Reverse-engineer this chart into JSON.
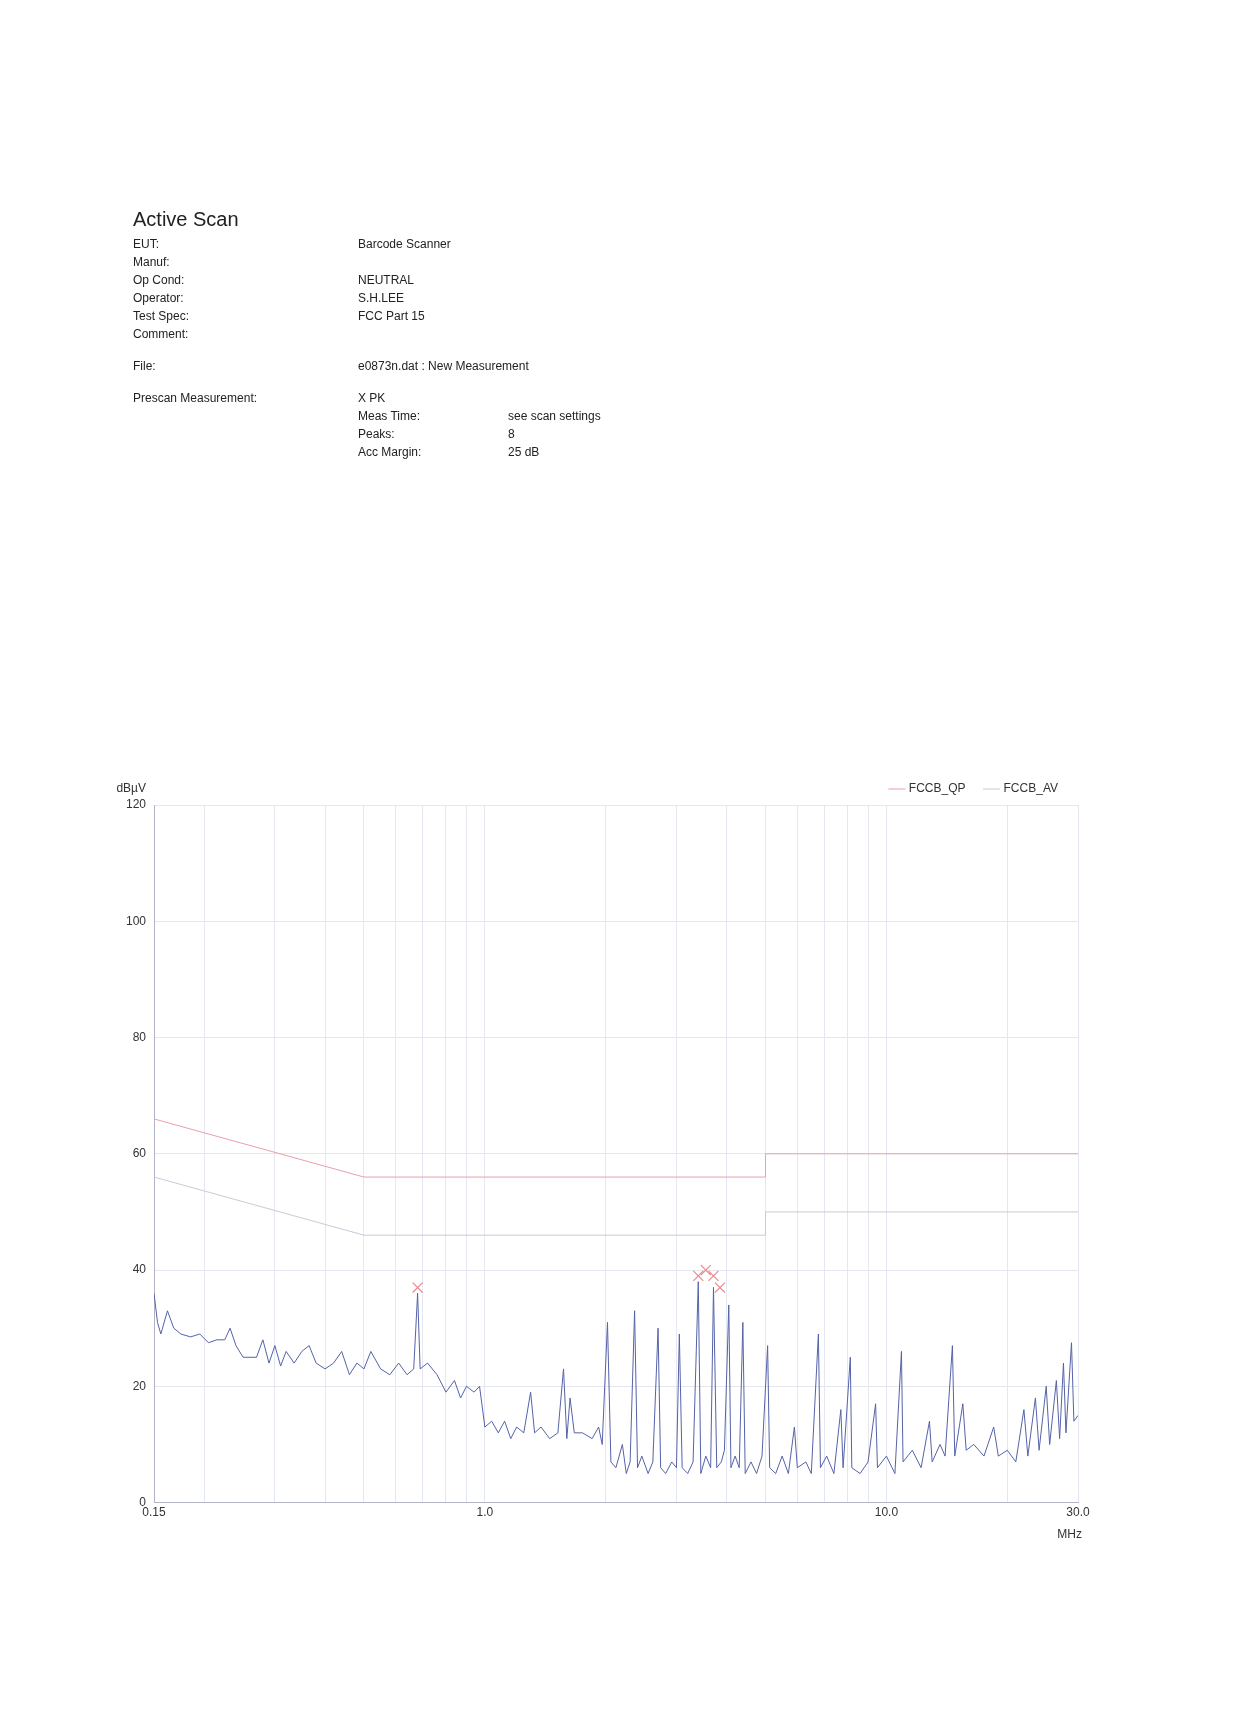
{
  "chart_data": {
    "type": "line",
    "title": "Active Scan",
    "ylabel": "dBµV",
    "xlabel": "MHz",
    "log": "x",
    "grid": true,
    "legend": "top",
    "annotations": [
      "EUT:\tBarcode Scanner",
      "Manuf:",
      "Op Cond:\tNEUTRAL",
      "Operator:\tS.H.LEE",
      "Test Spec:\tFCC Part 15",
      "Comment:",
      "File:\te0873n.dat : New Measurement",
      "Prescan Measurement:\tX PK",
      "\tMeas Time:\tsee scan settings",
      "\tPeaks:\t8",
      "\tAcc Margin:\t25 dB"
    ],
    "xlim": [
      0.15,
      30
    ],
    "ylim": [
      0,
      120
    ],
    "xticks": [
      0.15,
      {
        "value": 0.2,
        "label": null
      },
      {
        "value": 0.3,
        "label": null
      },
      {
        "value": 0.4,
        "label": null
      },
      {
        "value": 0.5,
        "label": null
      },
      {
        "value": 0.6,
        "label": null
      },
      {
        "value": 0.7,
        "label": null
      },
      {
        "value": 0.8,
        "label": null
      },
      {
        "value": 0.9,
        "label": null
      },
      {
        "value": 1,
        "label": "1.0"
      },
      {
        "value": 2,
        "label": null
      },
      {
        "value": 3,
        "label": null
      },
      {
        "value": 4,
        "label": null
      },
      {
        "value": 5,
        "label": null
      },
      {
        "value": 6,
        "label": null
      },
      {
        "value": 7,
        "label": null
      },
      {
        "value": 8,
        "label": null
      },
      {
        "value": 9,
        "label": null
      },
      {
        "value": 10,
        "label": "10.0"
      },
      {
        "value": 20,
        "label": null
      },
      {
        "value": 30,
        "label": "30.0"
      }
    ],
    "yticks": [
      0,
      20,
      40,
      60,
      80,
      100,
      120
    ],
    "series": [
      {
        "name": "FCCB_QP",
        "color": "#e8a0aa",
        "x": [
          0.15,
          0.5,
          5,
          5,
          30
        ],
        "values": [
          66,
          56,
          56,
          60,
          60
        ]
      },
      {
        "name": "FCCB_AV",
        "color": "#c8cad8",
        "x": [
          0.15,
          0.5,
          5,
          5,
          30
        ],
        "values": [
          56,
          46,
          46,
          50,
          50
        ]
      },
      {
        "color": "#5563a8",
        "x": [
          0.15,
          0.153,
          0.156,
          0.162,
          0.168,
          0.175,
          0.185,
          0.195,
          0.205,
          0.215,
          0.225,
          0.232,
          0.24,
          0.25,
          0.26,
          0.27,
          0.28,
          0.29,
          0.3,
          0.31,
          0.32,
          0.335,
          0.35,
          0.365,
          0.38,
          0.4,
          0.42,
          0.44,
          0.46,
          0.48,
          0.5,
          0.52,
          0.55,
          0.58,
          0.61,
          0.64,
          0.665,
          0.68,
          0.69,
          0.72,
          0.76,
          0.8,
          0.84,
          0.87,
          0.9,
          0.94,
          0.97,
          1.0,
          1.04,
          1.08,
          1.12,
          1.16,
          1.2,
          1.25,
          1.3,
          1.33,
          1.38,
          1.45,
          1.52,
          1.57,
          1.6,
          1.63,
          1.67,
          1.75,
          1.85,
          1.92,
          1.96,
          2.02,
          2.06,
          2.12,
          2.2,
          2.25,
          2.3,
          2.36,
          2.4,
          2.46,
          2.55,
          2.62,
          2.7,
          2.74,
          2.82,
          2.92,
          3.0,
          3.05,
          3.1,
          3.2,
          3.3,
          3.4,
          3.45,
          3.55,
          3.65,
          3.71,
          3.78,
          3.88,
          3.95,
          4.05,
          4.1,
          4.2,
          4.3,
          4.39,
          4.45,
          4.6,
          4.75,
          4.9,
          5.06,
          5.12,
          5.3,
          5.5,
          5.7,
          5.9,
          6.0,
          6.3,
          6.5,
          6.77,
          6.85,
          7.1,
          7.4,
          7.7,
          7.8,
          8.13,
          8.2,
          8.6,
          9.0,
          9.4,
          9.5,
          10.0,
          10.5,
          10.9,
          11.0,
          11.6,
          12.2,
          12.8,
          13.0,
          13.6,
          14.0,
          14.6,
          14.8,
          15.5,
          15.8,
          16.5,
          17.5,
          18.5,
          19,
          20,
          21,
          22,
          22.5,
          23.5,
          24,
          25,
          25.5,
          26.5,
          27,
          27.6,
          28,
          28.9,
          29.3,
          30
        ],
        "values": [
          36,
          31,
          29,
          33,
          30,
          29,
          28.5,
          29,
          27.5,
          28,
          28,
          30,
          27,
          25,
          25,
          25,
          28,
          24,
          27,
          23.5,
          26,
          24,
          26,
          27,
          24,
          23,
          24,
          26,
          22,
          24,
          23,
          26,
          23,
          22,
          24,
          22,
          23,
          36,
          23,
          24,
          22,
          19,
          21,
          18,
          20,
          19,
          20,
          13,
          14,
          12,
          14,
          11,
          13,
          12,
          19,
          12,
          13,
          11,
          12,
          23,
          11,
          18,
          12,
          12,
          11,
          13,
          10,
          31,
          7,
          6,
          10,
          5,
          7,
          33,
          6,
          8,
          5,
          7,
          30,
          6,
          5,
          7,
          6,
          29,
          6,
          5,
          7,
          38,
          5,
          8,
          6,
          37,
          6,
          7,
          9,
          34,
          6,
          8,
          6,
          31,
          5,
          7,
          5,
          8,
          27,
          6,
          5,
          8,
          5,
          13,
          6,
          7,
          5,
          29,
          6,
          8,
          5,
          16,
          6,
          25,
          6,
          5,
          7,
          17,
          6,
          8,
          5,
          26,
          7,
          9,
          6,
          14,
          7,
          10,
          8,
          27,
          8,
          17,
          9,
          10,
          8,
          13,
          8,
          9,
          7,
          16,
          8,
          18,
          9,
          20,
          10,
          21,
          11,
          24,
          12,
          27.5,
          14,
          15
        ]
      },
      {
        "type": "scatter",
        "marker": "cross",
        "color": "#e88a90",
        "x": [
          0.68,
          3.4,
          3.55,
          3.71,
          3.85
        ],
        "values": [
          37,
          39,
          40,
          39,
          37
        ]
      }
    ]
  }
}
